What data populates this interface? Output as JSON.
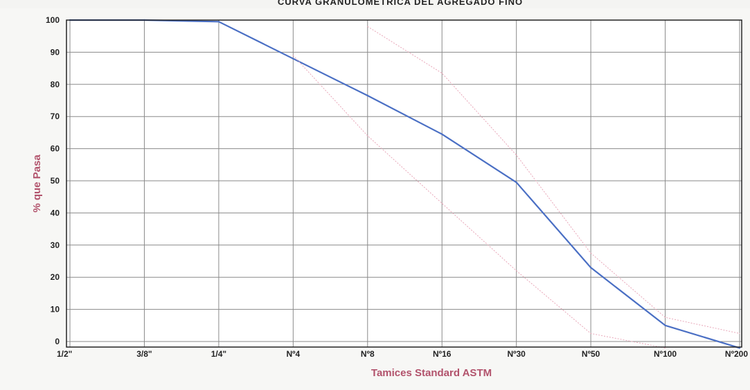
{
  "chart_data": {
    "type": "line",
    "title": "CURVA GRANULOMETRICA DEL AGREGADO FINO",
    "xlabel": "Tamices Standard ASTM",
    "ylabel": "% que Pasa",
    "categories": [
      "1/2\"",
      "3/8\"",
      "1/4\"",
      "Nº4",
      "Nº8",
      "Nº16",
      "Nº30",
      "Nº50",
      "Nº100",
      "Nº200"
    ],
    "yticks": [
      "0",
      "10",
      "20",
      "30",
      "40",
      "50",
      "60",
      "70",
      "80",
      "90",
      "100"
    ],
    "ylim": [
      0,
      100
    ],
    "grid": true,
    "series": [
      {
        "role": "gradation",
        "values": [
          100,
          100,
          99.5,
          88,
          76.5,
          64.5,
          49.5,
          23,
          5,
          -2
        ],
        "color": "#4a6fc4"
      },
      {
        "role": "upper-limit",
        "values": [
          null,
          null,
          null,
          null,
          98,
          83.5,
          58,
          27.5,
          7.5,
          2.5
        ],
        "color": "#e8a6b8"
      },
      {
        "role": "lower-limit",
        "values": [
          null,
          null,
          null,
          89,
          64,
          43,
          22,
          2.5,
          -2,
          null
        ],
        "color": "#e8a6b8"
      }
    ],
    "colors": {
      "frame": "#222222",
      "grid": "#8a8a8a",
      "plot_background": "#ffffff",
      "axis_label": "#b2536c"
    }
  }
}
